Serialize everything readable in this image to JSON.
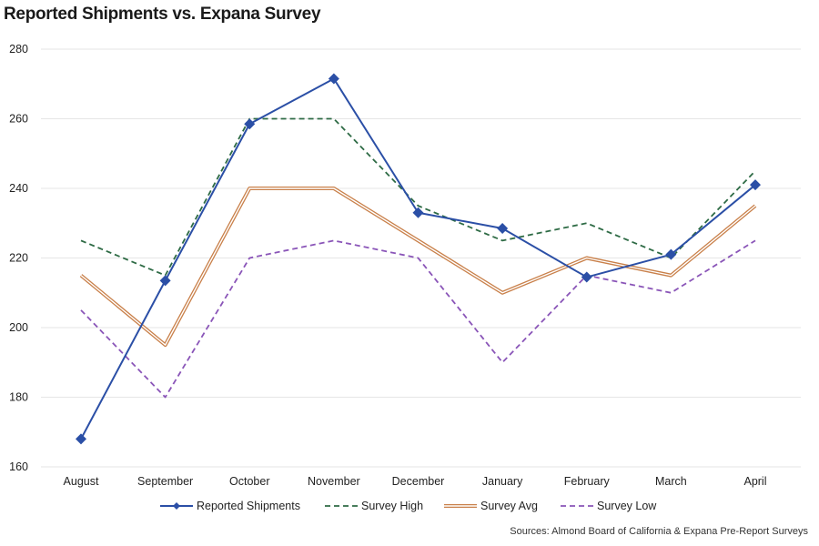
{
  "title": "Reported Shipments vs. Expana Survey",
  "source": "Sources: Almond Board of California & Expana Pre-Report Surveys",
  "chart_data": {
    "type": "line",
    "title": "Reported Shipments vs. Expana Survey",
    "xlabel": "",
    "ylabel": "",
    "categories": [
      "August",
      "September",
      "October",
      "November",
      "December",
      "January",
      "February",
      "March",
      "April"
    ],
    "ylim": [
      160,
      280
    ],
    "yticks": [
      160,
      180,
      200,
      220,
      240,
      260,
      280
    ],
    "grid": "horizontal",
    "legend_position": "bottom",
    "series": [
      {
        "name": "Reported Shipments",
        "values": [
          168,
          213.5,
          258.5,
          271.5,
          233,
          228.5,
          214.5,
          221,
          241
        ],
        "color": "#2b4fa6",
        "style": "solid-marker"
      },
      {
        "name": "Survey High",
        "values": [
          225,
          215,
          260,
          260,
          235,
          225,
          230,
          220,
          245
        ],
        "color": "#2e6b45",
        "style": "dashed"
      },
      {
        "name": "Survey Avg",
        "values": [
          215,
          195,
          240,
          240,
          225,
          210,
          220,
          215,
          235
        ],
        "color": "#c9804a",
        "style": "double"
      },
      {
        "name": "Survey Low",
        "values": [
          205,
          180,
          220,
          225,
          220,
          190,
          215,
          210,
          225
        ],
        "color": "#8a55b8",
        "style": "dashed"
      }
    ]
  }
}
